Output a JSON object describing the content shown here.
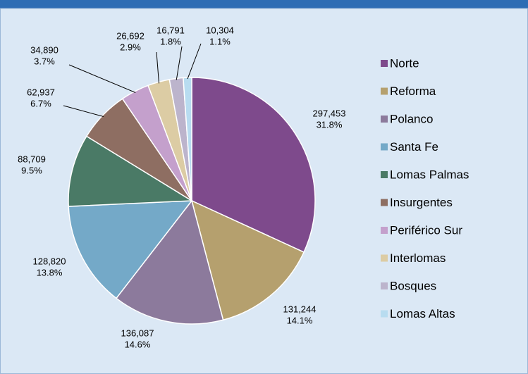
{
  "chart_data": {
    "type": "pie",
    "categories": [
      "Norte",
      "Reforma",
      "Polanco",
      "Santa Fe",
      "Lomas Palmas",
      "Insurgentes",
      "Periférico Sur",
      "Interlomas",
      "Bosques",
      "Lomas Altas"
    ],
    "values": [
      297453,
      131244,
      136087,
      128820,
      88709,
      62937,
      34890,
      26692,
      16791,
      10304
    ],
    "value_labels": [
      "297,453",
      "131,244",
      "136,087",
      "128,820",
      "88,709",
      "62,937",
      "34,890",
      "26,692",
      "16,791",
      "10,304"
    ],
    "percent_labels": [
      "31.8%",
      "14.1%",
      "14.6%",
      "13.8%",
      "9.5%",
      "6.7%",
      "3.7%",
      "2.9%",
      "1.8%",
      "1.1%"
    ],
    "colors": [
      "#7e4a8c",
      "#b5a06e",
      "#8c7a9c",
      "#74a9c8",
      "#4a7a66",
      "#8e6e62",
      "#c4a0cc",
      "#dccca4",
      "#bcb4cc",
      "#b8dcf0"
    ],
    "legend": "right"
  }
}
